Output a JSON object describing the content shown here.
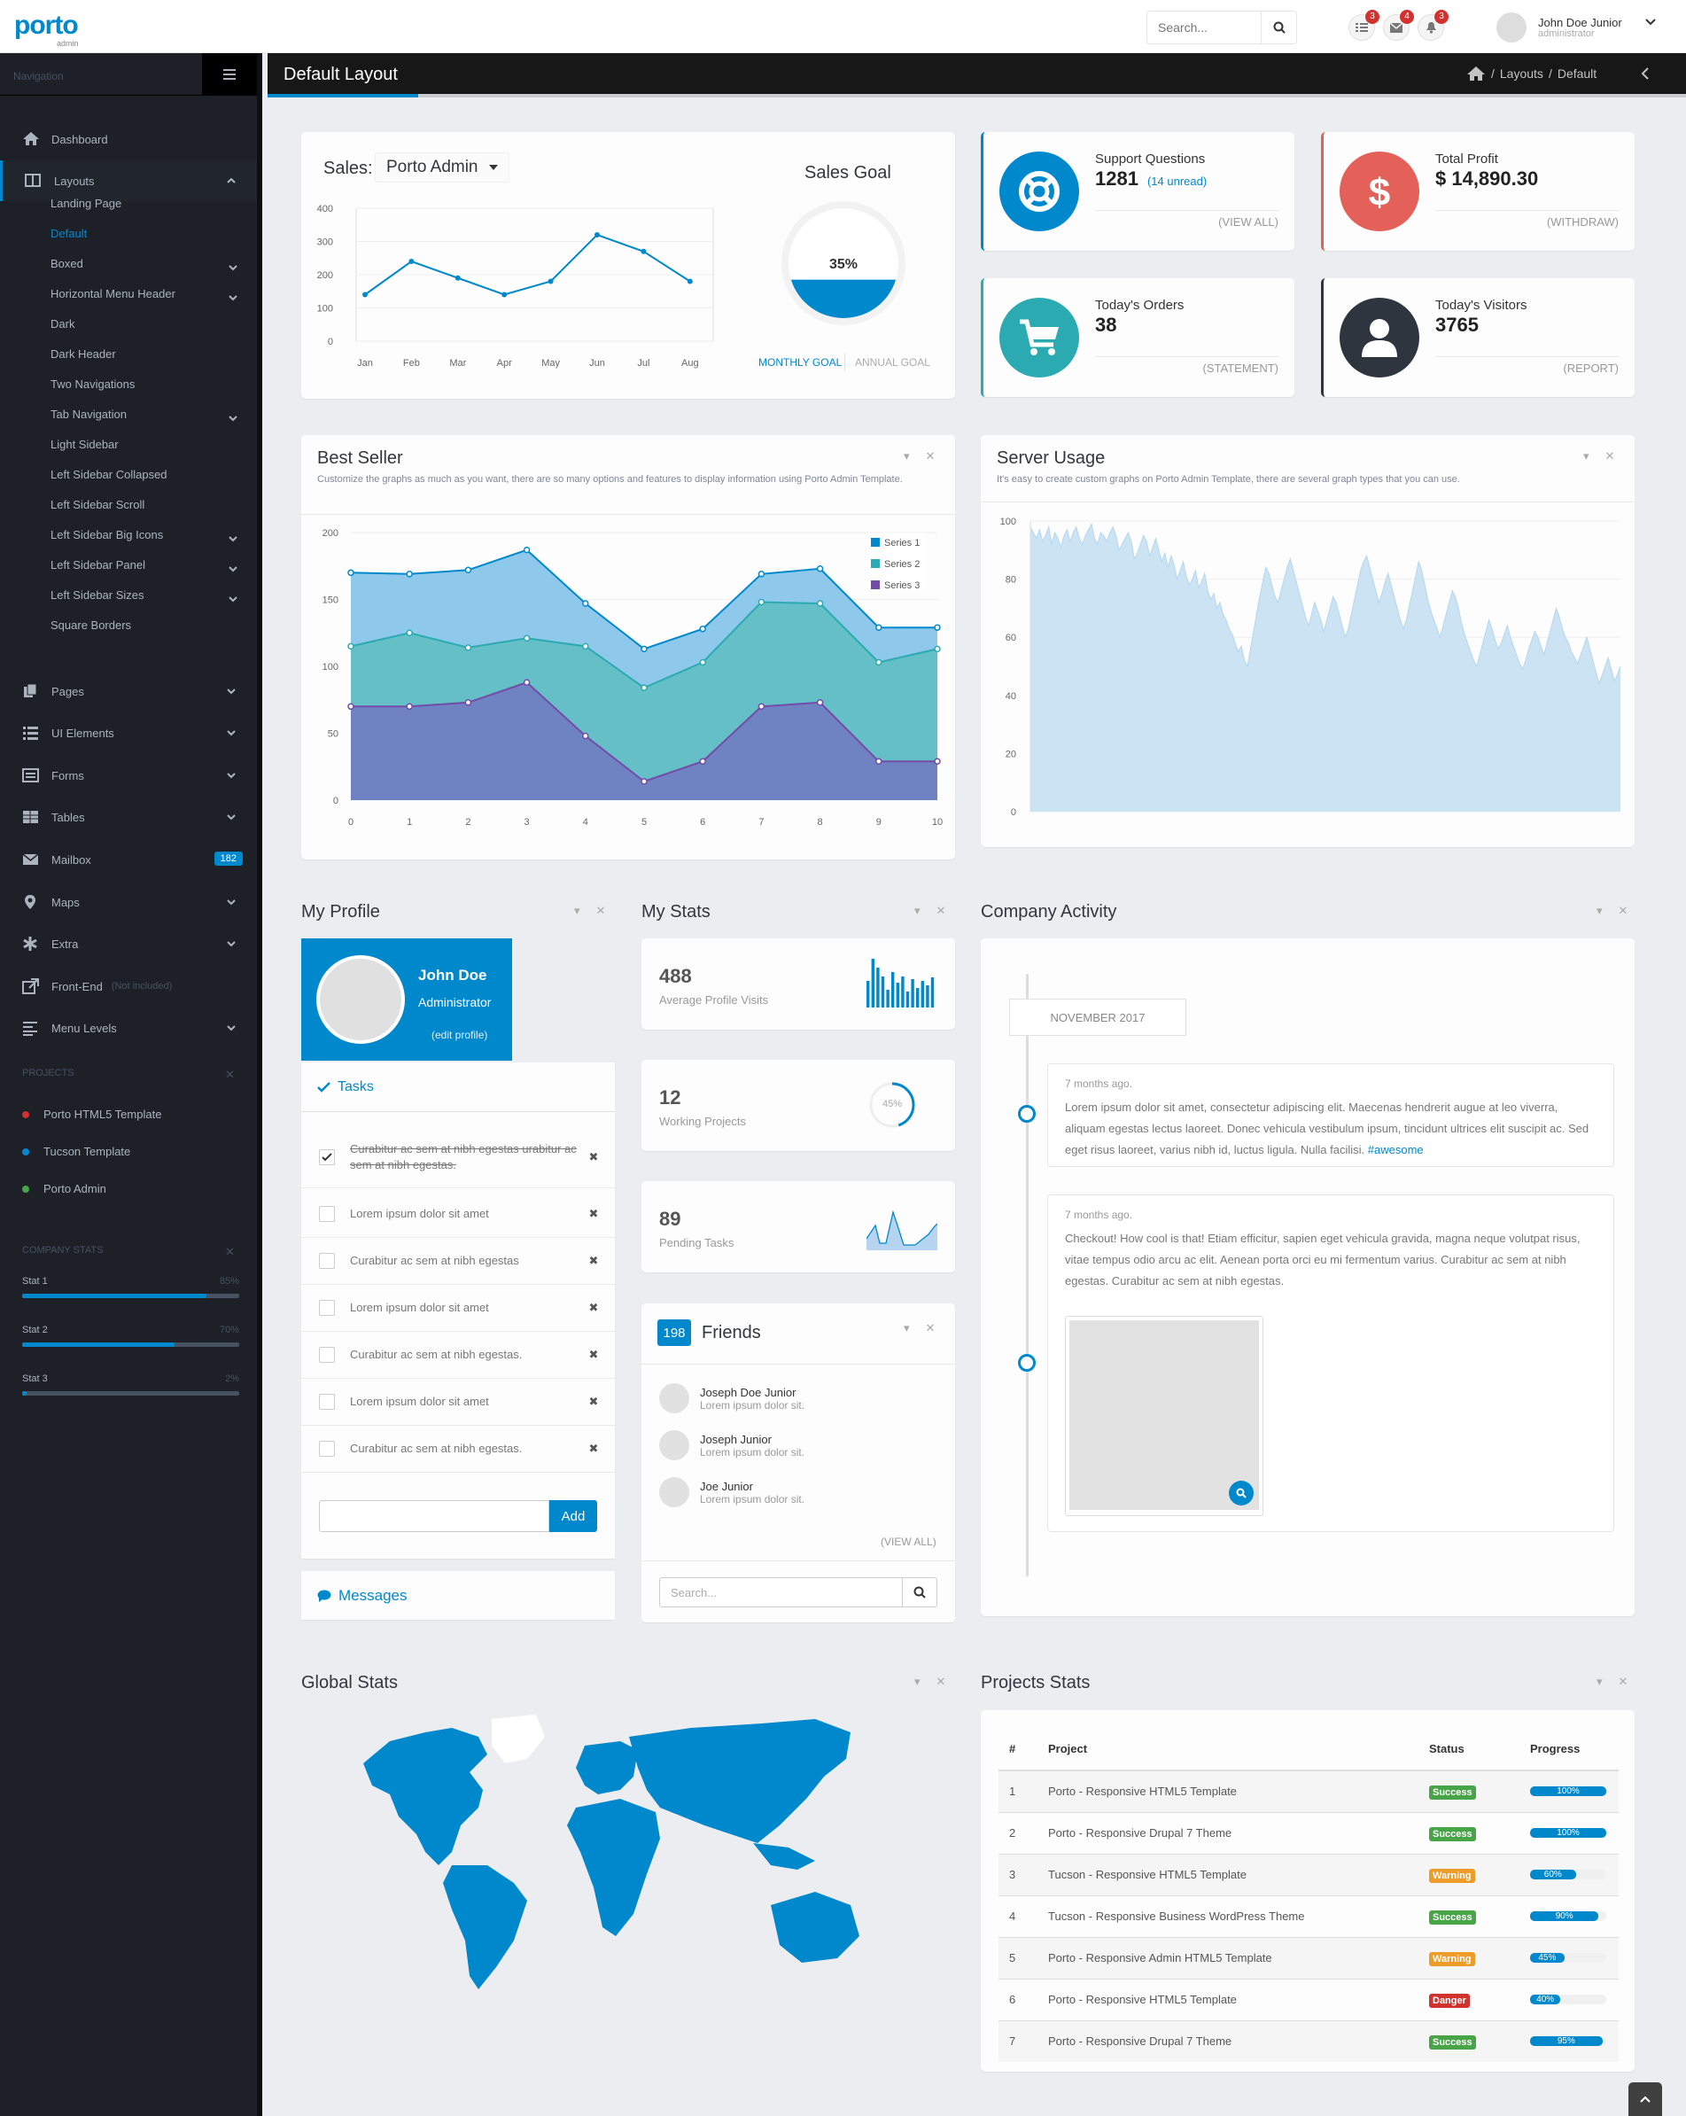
{
  "brand": {
    "logo": "porto",
    "sub": "admin"
  },
  "header": {
    "search_placeholder": "Search...",
    "notif_tasks": "3",
    "notif_messages": "4",
    "notif_alerts": "3",
    "user_name": "John Doe Junior",
    "user_role": "administrator"
  },
  "sidebar": {
    "title": "Navigation",
    "items": [
      {
        "label": "Dashboard",
        "icon": "home-icon"
      },
      {
        "label": "Layouts",
        "icon": "columns-icon"
      },
      {
        "label": "Pages",
        "icon": "copy-icon"
      },
      {
        "label": "UI Elements",
        "icon": "tasks-icon"
      },
      {
        "label": "Forms",
        "icon": "list-alt-icon"
      },
      {
        "label": "Tables",
        "icon": "table-icon"
      },
      {
        "label": "Mailbox",
        "icon": "envelope-icon",
        "badge": "182"
      },
      {
        "label": "Maps",
        "icon": "map-marker-icon"
      },
      {
        "label": "Extra",
        "icon": "asterisk-icon"
      },
      {
        "label": "Front-End",
        "icon": "external-link-icon",
        "note": "(Not included)"
      },
      {
        "label": "Menu Levels",
        "icon": "align-left-icon"
      }
    ],
    "layouts_sub": [
      "Landing Page",
      "Default",
      "Boxed",
      "Horizontal Menu Header",
      "Dark",
      "Dark Header",
      "Two Navigations",
      "Tab Navigation",
      "Light Sidebar",
      "Left Sidebar Collapsed",
      "Left Sidebar Scroll",
      "Left Sidebar Big Icons",
      "Left Sidebar Panel",
      "Left Sidebar Sizes",
      "Square Borders"
    ],
    "projects_title": "PROJECTS",
    "projects": [
      {
        "name": "Porto HTML5 Template",
        "color": "#d2322d"
      },
      {
        "name": "Tucson Template",
        "color": "#0088cc"
      },
      {
        "name": "Porto Admin",
        "color": "#47a447"
      }
    ],
    "company_stats_title": "COMPANY STATS",
    "company_stats": [
      {
        "label": "Stat 1",
        "pct": "85%",
        "value": 0.85
      },
      {
        "label": "Stat 2",
        "pct": "70%",
        "value": 0.7
      },
      {
        "label": "Stat 3",
        "pct": "2%",
        "value": 0.02
      }
    ]
  },
  "page": {
    "title": "Default Layout",
    "breadcrumb": [
      "Layouts",
      "Default"
    ]
  },
  "sales": {
    "label": "Sales:",
    "selected": "Porto Admin",
    "goal_title": "Sales Goal",
    "goal_pct": "35%",
    "goal_value": 0.35,
    "tab_monthly": "MONTHLY GOAL",
    "tab_annual": "ANNUAL GOAL"
  },
  "summary": [
    {
      "title": "Support Questions",
      "amount": "1281",
      "extra": "(14 unread)",
      "link": "(VIEW ALL)",
      "color": "#0088cc",
      "icon": "life-ring-icon"
    },
    {
      "title": "Total Profit",
      "amount": "$ 14,890.30",
      "extra": "",
      "link": "(WITHDRAW)",
      "color": "#e36159",
      "icon": "dollar-icon"
    },
    {
      "title": "Today's Orders",
      "amount": "38",
      "extra": "",
      "link": "(STATEMENT)",
      "color": "#2baab1",
      "icon": "shopping-cart-icon"
    },
    {
      "title": "Today's Visitors",
      "amount": "3765",
      "extra": "",
      "link": "(REPORT)",
      "color": "#2e353e",
      "icon": "user-icon"
    }
  ],
  "best_seller": {
    "title": "Best Seller",
    "subtitle": "Customize the graphs as much as you want, there are so many options and features to display information using Porto Admin Template."
  },
  "server_usage": {
    "title": "Server Usage",
    "subtitle": "It's easy to create custom graphs on Porto Admin Template, there are several graph types that you can use."
  },
  "chart_data": [
    {
      "type": "line",
      "categories": [
        "Jan",
        "Feb",
        "Mar",
        "Apr",
        "May",
        "Jun",
        "Jul",
        "Aug"
      ],
      "series": [
        {
          "values": [
            140,
            240,
            190,
            140,
            180,
            320,
            270,
            180
          ]
        }
      ],
      "ylim": [
        0,
        400
      ],
      "yticks": [
        0,
        100,
        200,
        300,
        400
      ]
    },
    {
      "type": "area",
      "x": [
        0,
        1,
        2,
        3,
        4,
        5,
        6,
        7,
        8,
        9,
        10
      ],
      "ylim": [
        0,
        200
      ],
      "yticks": [
        0,
        50,
        100,
        150,
        200
      ],
      "series": [
        {
          "name": "Series 1",
          "color": "#0088cc",
          "values": [
            170,
            169,
            172,
            187,
            147,
            113,
            128,
            169,
            173,
            129,
            129
          ]
        },
        {
          "name": "Series 2",
          "color": "#2baab1",
          "values": [
            115,
            125,
            114,
            121,
            115,
            84,
            103,
            148,
            147,
            103,
            113
          ]
        },
        {
          "name": "Series 3",
          "color": "#734ba9",
          "values": [
            70,
            70,
            73,
            88,
            48,
            14,
            29,
            70,
            73,
            29,
            29
          ]
        }
      ]
    },
    {
      "type": "area",
      "ylim": [
        0,
        100
      ],
      "yticks": [
        0,
        20,
        40,
        60,
        80,
        100
      ],
      "series": [
        {
          "values": [
            98,
            96,
            94,
            97,
            93,
            95,
            98,
            92,
            96,
            94,
            91,
            95,
            97,
            93,
            96,
            98,
            94,
            92,
            95,
            97,
            99,
            94,
            92,
            96,
            95,
            93,
            96,
            98,
            95,
            90,
            92,
            94,
            96,
            93,
            87,
            89,
            92,
            95,
            93,
            88,
            91,
            94,
            90,
            86,
            89,
            84,
            88,
            85,
            80,
            83,
            86,
            81,
            78,
            80,
            83,
            77,
            79,
            82,
            76,
            73,
            75,
            70,
            72,
            68,
            66,
            63,
            61,
            58,
            55,
            57,
            52,
            50,
            56,
            62,
            68,
            74,
            79,
            84,
            82,
            78,
            74,
            72,
            76,
            80,
            84,
            87,
            83,
            79,
            75,
            71,
            67,
            64,
            68,
            72,
            69,
            66,
            62,
            66,
            70,
            74,
            72,
            68,
            64,
            60,
            63,
            68,
            73,
            78,
            83,
            86,
            88,
            84,
            80,
            76,
            72,
            75,
            79,
            82,
            78,
            74,
            70,
            66,
            63,
            66,
            71,
            76,
            81,
            86,
            83,
            78,
            73,
            69,
            66,
            63,
            60,
            64,
            68,
            72,
            76,
            74,
            70,
            65,
            61,
            58,
            55,
            52,
            50,
            54,
            58,
            62,
            66,
            63,
            59,
            56,
            58,
            61,
            64,
            60,
            57,
            54,
            51,
            49,
            52,
            56,
            59,
            62,
            60,
            57,
            54,
            58,
            62,
            66,
            70,
            67,
            63,
            60,
            58,
            55,
            53,
            51,
            54,
            57,
            60,
            56,
            52,
            48,
            44,
            47,
            50,
            53,
            49,
            45,
            47,
            50
          ]
        }
      ]
    }
  ],
  "profile": {
    "section": "My Profile",
    "name": "John Doe",
    "role": "Administrator",
    "edit": "(edit profile)",
    "tasks_title": "Tasks",
    "tasks": [
      {
        "text": "Curabitur ac sem at nibh egestas urabitur ac sem at nibh egestas.",
        "done": true
      },
      {
        "text": "Lorem ipsum dolor sit amet",
        "done": false
      },
      {
        "text": "Curabitur ac sem at nibh egestas",
        "done": false
      },
      {
        "text": "Lorem ipsum dolor sit amet",
        "done": false
      },
      {
        "text": "Curabitur ac sem at nibh egestas.",
        "done": false
      },
      {
        "text": "Lorem ipsum dolor sit amet",
        "done": false
      },
      {
        "text": "Curabitur ac sem at nibh egestas.",
        "done": false
      }
    ],
    "add_label": "Add",
    "messages_label": "Messages"
  },
  "stats": {
    "section": "My Stats",
    "items": [
      {
        "num": "488",
        "label": "Average Profile Visits"
      },
      {
        "num": "12",
        "label": "Working Projects",
        "pct": "45%",
        "value": 0.45
      },
      {
        "num": "89",
        "label": "Pending Tasks"
      }
    ]
  },
  "friends": {
    "count": "198",
    "title": "Friends",
    "list": [
      {
        "name": "Joseph Doe Junior",
        "desc": "Lorem ipsum dolor sit."
      },
      {
        "name": "Joseph Junior",
        "desc": "Lorem ipsum dolor sit."
      },
      {
        "name": "Joe Junior",
        "desc": "Lorem ipsum dolor sit."
      }
    ],
    "view_all": "(VIEW ALL)",
    "search_placeholder": "Search..."
  },
  "activity": {
    "section": "Company Activity",
    "month": "NOVEMBER 2017",
    "posts": [
      {
        "time": "7 months ago.",
        "text": "Lorem ipsum dolor sit amet, consectetur adipiscing elit. Maecenas hendrerit augue at leo viverra, aliquam egestas lectus laoreet. Donec vehicula vestibulum ipsum, tincidunt ultrices elit suscipit ac. Sed eget risus laoreet, varius nibh id, luctus ligula. Nulla facilisi.",
        "tag": "#awesome"
      },
      {
        "time": "7 months ago.",
        "text": "Checkout! How cool is that! Etiam efficitur, sapien eget vehicula gravida, magna neque volutpat risus, vitae tempus odio arcu ac elit. Aenean porta orci eu mi fermentum varius. Curabitur ac sem at nibh egestas. Curabitur ac sem at nibh egestas.",
        "tag": ""
      }
    ]
  },
  "global": {
    "section": "Global Stats"
  },
  "projects_stats": {
    "section": "Projects Stats",
    "headers": [
      "#",
      "Project",
      "Status",
      "Progress"
    ],
    "rows": [
      {
        "n": "1",
        "project": "Porto - Responsive HTML5 Template",
        "status": "Success",
        "color": "#47a447",
        "pct": "100%",
        "value": 1.0
      },
      {
        "n": "2",
        "project": "Porto - Responsive Drupal 7 Theme",
        "status": "Success",
        "color": "#47a447",
        "pct": "100%",
        "value": 1.0
      },
      {
        "n": "3",
        "project": "Tucson - Responsive HTML5 Template",
        "status": "Warning",
        "color": "#ed9c28",
        "pct": "60%",
        "value": 0.6
      },
      {
        "n": "4",
        "project": "Tucson - Responsive Business WordPress Theme",
        "status": "Success",
        "color": "#47a447",
        "pct": "90%",
        "value": 0.9
      },
      {
        "n": "5",
        "project": "Porto - Responsive Admin HTML5 Template",
        "status": "Warning",
        "color": "#ed9c28",
        "pct": "45%",
        "value": 0.45
      },
      {
        "n": "6",
        "project": "Porto - Responsive HTML5 Template",
        "status": "Danger",
        "color": "#d2322d",
        "pct": "40%",
        "value": 0.4
      },
      {
        "n": "7",
        "project": "Porto - Responsive Drupal 7 Theme",
        "status": "Success",
        "color": "#47a447",
        "pct": "95%",
        "value": 0.95
      }
    ]
  }
}
